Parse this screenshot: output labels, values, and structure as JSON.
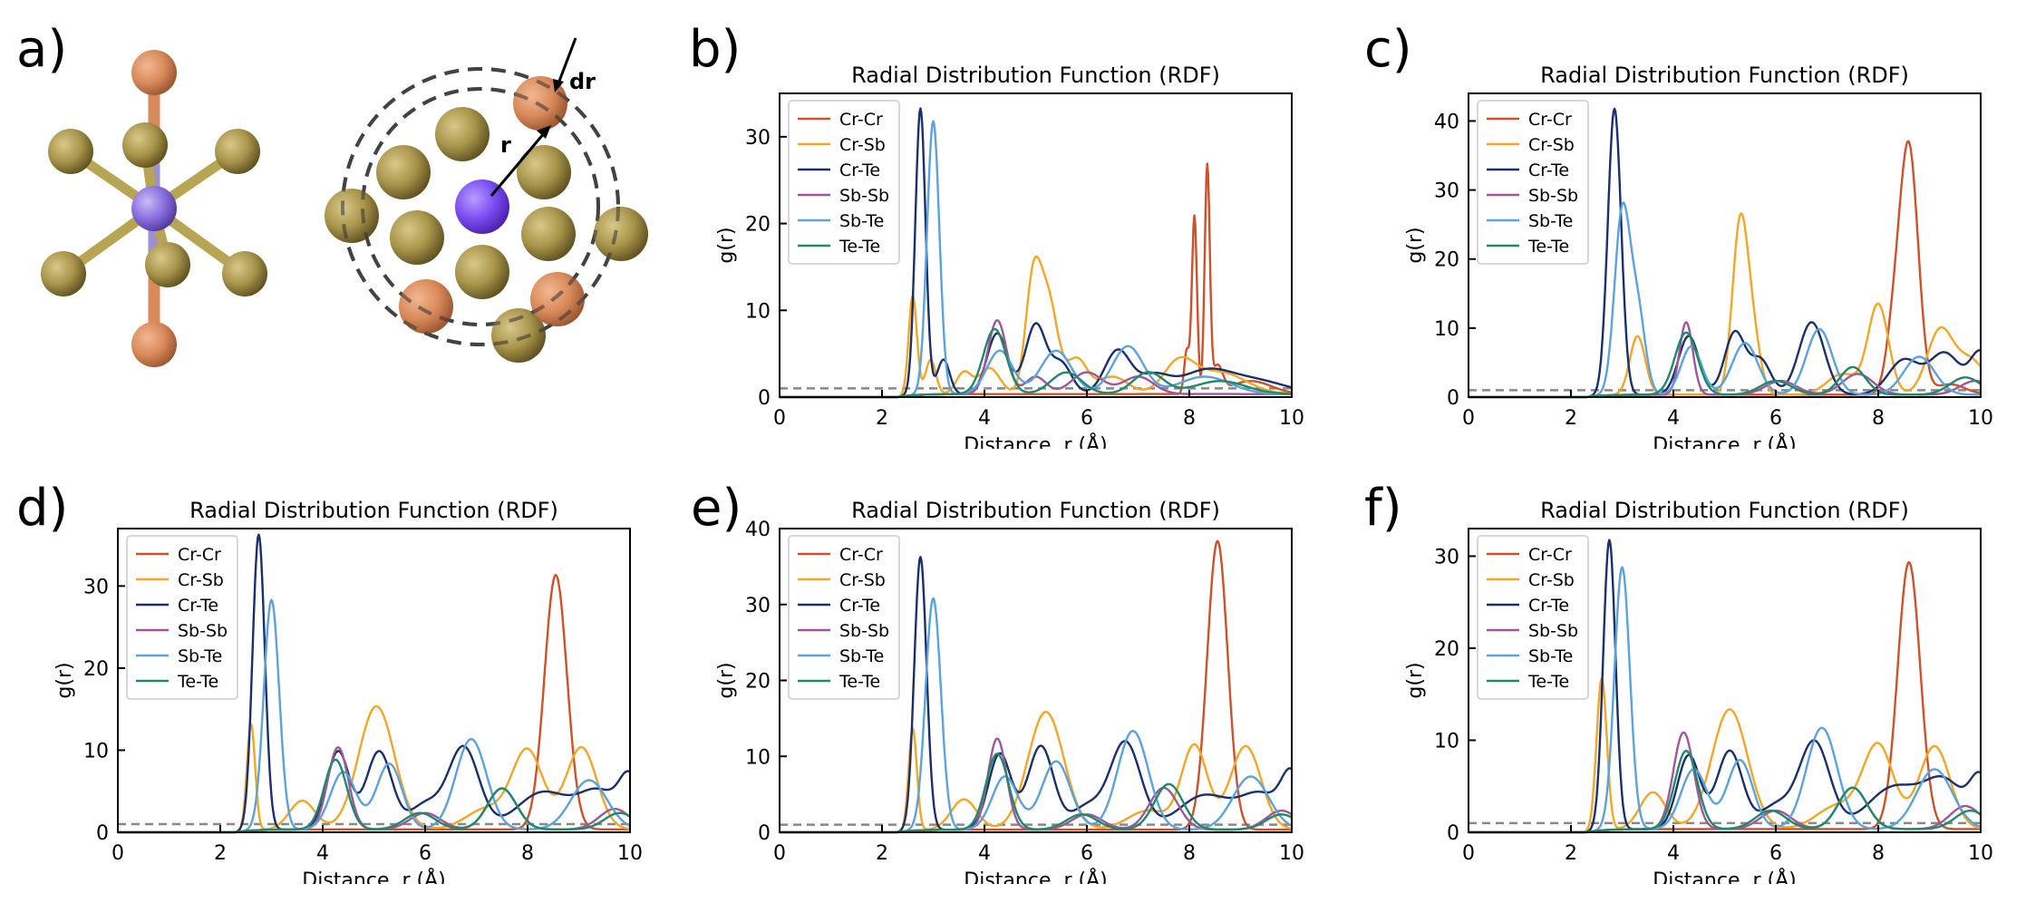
{
  "panel_letters": [
    "a)",
    "b)",
    "c)",
    "d)",
    "e)",
    "f)"
  ],
  "schematic": {
    "label_r": "r",
    "label_dr": "dr",
    "colors": {
      "center": "#8a6ee0",
      "center_bright": "#7b4cf0",
      "gold": "#a8944a",
      "copper": "#d98a5a",
      "bond_copper": "#d98a5a",
      "bond_purple": "#9d8fd0",
      "bond_gold": "#b7a553",
      "shell": "#555555"
    }
  },
  "series_colors": {
    "Cr-Cr": "#d0502a",
    "Cr-Sb": "#f5a623",
    "Cr-Te": "#1a2f6e",
    "Sb-Sb": "#a0569b",
    "Sb-Te": "#5aa2e0",
    "Te-Te": "#1f8a6a"
  },
  "chart_data": [
    {
      "id": "b",
      "type": "line",
      "title": "Radial Distribution Function (RDF)",
      "xlabel": "Distance, r (Å)",
      "ylabel": "g(r)",
      "xlim": [
        0,
        10
      ],
      "ylim": [
        0,
        35
      ],
      "xticks": [
        0,
        2,
        4,
        6,
        8,
        10
      ],
      "yticks": [
        0,
        10,
        20,
        30
      ],
      "legend": "top-left",
      "reference_line": 1,
      "series": [
        {
          "name": "Cr-Cr",
          "peaks": [
            [
              8.1,
              20.5,
              0.05
            ],
            [
              8.35,
              26.0,
              0.05
            ],
            [
              7.95,
              5.0,
              0.05
            ],
            [
              8.55,
              3.0,
              0.1
            ],
            [
              9.2,
              1.5,
              0.4
            ]
          ]
        },
        {
          "name": "Cr-Sb",
          "peaks": [
            [
              2.6,
              11.5,
              0.08
            ],
            [
              2.95,
              4.0,
              0.1
            ],
            [
              3.6,
              2.5,
              0.15
            ],
            [
              4.1,
              3.0,
              0.2
            ],
            [
              4.95,
              12.5,
              0.15
            ],
            [
              5.25,
              10.5,
              0.18
            ],
            [
              5.8,
              4.0,
              0.2
            ],
            [
              6.5,
              2.0,
              0.3
            ],
            [
              7.8,
              3.5,
              0.3
            ],
            [
              8.6,
              2.5,
              0.5
            ]
          ]
        },
        {
          "name": "Cr-Te",
          "peaks": [
            [
              2.75,
              33.0,
              0.1
            ],
            [
              3.2,
              4.0,
              0.12
            ],
            [
              4.25,
              7.0,
              0.2
            ],
            [
              5.0,
              8.0,
              0.2
            ],
            [
              5.5,
              3.5,
              0.2
            ],
            [
              6.6,
              5.0,
              0.25
            ],
            [
              7.3,
              2.0,
              0.3
            ],
            [
              8.3,
              2.5,
              0.5
            ],
            [
              9.3,
              1.5,
              0.6
            ]
          ]
        },
        {
          "name": "Sb-Sb",
          "peaks": [
            [
              4.25,
              8.5,
              0.18
            ],
            [
              5.0,
              2.0,
              0.2
            ],
            [
              6.0,
              2.5,
              0.3
            ],
            [
              7.0,
              2.0,
              0.3
            ]
          ]
        },
        {
          "name": "Sb-Te",
          "peaks": [
            [
              3.0,
              31.5,
              0.12
            ],
            [
              4.3,
              5.0,
              0.25
            ],
            [
              5.4,
              5.0,
              0.3
            ],
            [
              6.8,
              5.5,
              0.3
            ],
            [
              8.3,
              2.0,
              0.5
            ]
          ]
        },
        {
          "name": "Te-Te",
          "peaks": [
            [
              4.2,
              7.5,
              0.22
            ],
            [
              5.6,
              2.5,
              0.3
            ],
            [
              7.2,
              2.5,
              0.3
            ],
            [
              8.6,
              1.5,
              0.5
            ]
          ]
        }
      ]
    },
    {
      "id": "c",
      "type": "line",
      "title": "Radial Distribution Function (RDF)",
      "xlabel": "Distance, r (Å)",
      "ylabel": "g(r)",
      "xlim": [
        0,
        10
      ],
      "ylim": [
        0,
        44
      ],
      "xticks": [
        0,
        2,
        4,
        6,
        8,
        10
      ],
      "yticks": [
        0,
        10,
        20,
        30,
        40
      ],
      "legend": "top-left",
      "reference_line": 1,
      "series": [
        {
          "name": "Cr-Cr",
          "peaks": [
            [
              8.6,
              35.5,
              0.18
            ],
            [
              8.3,
              8.0,
              0.15
            ],
            [
              9.4,
              1.5,
              0.3
            ]
          ]
        },
        {
          "name": "Cr-Sb",
          "peaks": [
            [
              3.3,
              8.5,
              0.15
            ],
            [
              5.3,
              24.0,
              0.15
            ],
            [
              5.55,
              8.0,
              0.15
            ],
            [
              7.3,
              3.0,
              0.3
            ],
            [
              8.0,
              13.0,
              0.2
            ],
            [
              9.2,
              9.0,
              0.25
            ],
            [
              9.8,
              5.0,
              0.3
            ]
          ]
        },
        {
          "name": "Cr-Te",
          "peaks": [
            [
              2.85,
              41.5,
              0.13
            ],
            [
              4.3,
              8.5,
              0.2
            ],
            [
              5.2,
              9.0,
              0.2
            ],
            [
              5.7,
              5.0,
              0.2
            ],
            [
              6.7,
              10.5,
              0.25
            ],
            [
              8.5,
              5.0,
              0.3
            ],
            [
              9.3,
              6.0,
              0.3
            ],
            [
              10.0,
              6.0,
              0.2
            ]
          ]
        },
        {
          "name": "Sb-Sb",
          "peaks": [
            [
              4.25,
              10.5,
              0.13
            ],
            [
              6.1,
              2.0,
              0.3
            ],
            [
              7.6,
              3.0,
              0.3
            ],
            [
              9.9,
              2.0,
              0.3
            ]
          ]
        },
        {
          "name": "Sb-Te",
          "peaks": [
            [
              3.0,
              26.0,
              0.15
            ],
            [
              3.3,
              12.0,
              0.15
            ],
            [
              4.35,
              7.0,
              0.2
            ],
            [
              5.4,
              7.5,
              0.25
            ],
            [
              6.85,
              9.5,
              0.25
            ],
            [
              8.8,
              5.5,
              0.3
            ]
          ]
        },
        {
          "name": "Te-Te",
          "peaks": [
            [
              4.25,
              9.0,
              0.22
            ],
            [
              6.0,
              2.0,
              0.3
            ],
            [
              7.5,
              4.0,
              0.25
            ],
            [
              9.7,
              2.5,
              0.3
            ]
          ]
        }
      ]
    },
    {
      "id": "d",
      "type": "line",
      "title": "Radial Distribution Function (RDF)",
      "xlabel": "Distance, r (Å)",
      "ylabel": "g(r)",
      "xlim": [
        0,
        10
      ],
      "ylim": [
        0,
        37
      ],
      "xticks": [
        0,
        2,
        4,
        6,
        8,
        10
      ],
      "yticks": [
        0,
        10,
        20,
        30
      ],
      "legend": "top-left",
      "reference_line": 1,
      "series": [
        {
          "name": "Cr-Cr",
          "peaks": [
            [
              8.55,
              31.0,
              0.22
            ]
          ]
        },
        {
          "name": "Cr-Sb",
          "peaks": [
            [
              2.6,
              13.0,
              0.08
            ],
            [
              3.6,
              3.5,
              0.25
            ],
            [
              5.05,
              15.0,
              0.35
            ],
            [
              7.2,
              2.5,
              0.4
            ],
            [
              8.0,
              9.5,
              0.3
            ],
            [
              9.05,
              10.0,
              0.3
            ]
          ]
        },
        {
          "name": "Cr-Te",
          "peaks": [
            [
              2.75,
              36.0,
              0.12
            ],
            [
              4.3,
              9.5,
              0.22
            ],
            [
              5.1,
              9.5,
              0.25
            ],
            [
              6.0,
              3.0,
              0.3
            ],
            [
              6.75,
              10.0,
              0.3
            ],
            [
              8.3,
              4.5,
              0.5
            ],
            [
              9.4,
              4.5,
              0.4
            ],
            [
              10.0,
              5.5,
              0.2
            ]
          ]
        },
        {
          "name": "Sb-Sb",
          "peaks": [
            [
              4.3,
              10.0,
              0.2
            ],
            [
              6.0,
              2.0,
              0.3
            ],
            [
              7.5,
              5.0,
              0.28
            ],
            [
              9.7,
              2.5,
              0.3
            ]
          ]
        },
        {
          "name": "Sb-Te",
          "peaks": [
            [
              3.0,
              28.0,
              0.15
            ],
            [
              4.4,
              7.0,
              0.25
            ],
            [
              5.3,
              8.0,
              0.25
            ],
            [
              6.9,
              11.0,
              0.3
            ],
            [
              9.2,
              6.0,
              0.35
            ]
          ]
        },
        {
          "name": "Te-Te",
          "peaks": [
            [
              4.25,
              8.5,
              0.22
            ],
            [
              5.9,
              2.0,
              0.3
            ],
            [
              7.5,
              5.0,
              0.28
            ],
            [
              9.8,
              2.0,
              0.3
            ]
          ]
        }
      ]
    },
    {
      "id": "e",
      "type": "line",
      "title": "Radial Distribution Function (RDF)",
      "xlabel": "Distance, r (Å)",
      "ylabel": "g(r)",
      "xlim": [
        0,
        10
      ],
      "ylim": [
        0,
        40
      ],
      "xticks": [
        0,
        2,
        4,
        6,
        8,
        10
      ],
      "yticks": [
        0,
        10,
        20,
        30,
        40
      ],
      "legend": "top-left",
      "reference_line": 1,
      "series": [
        {
          "name": "Cr-Cr",
          "peaks": [
            [
              8.55,
              38.0,
              0.2
            ]
          ]
        },
        {
          "name": "Cr-Sb",
          "peaks": [
            [
              2.6,
              13.5,
              0.08
            ],
            [
              3.6,
              4.0,
              0.25
            ],
            [
              5.2,
              15.5,
              0.35
            ],
            [
              7.2,
              2.5,
              0.4
            ],
            [
              8.1,
              11.0,
              0.25
            ],
            [
              9.1,
              11.0,
              0.3
            ]
          ]
        },
        {
          "name": "Cr-Te",
          "peaks": [
            [
              2.75,
              36.0,
              0.12
            ],
            [
              4.3,
              10.0,
              0.22
            ],
            [
              5.1,
              11.0,
              0.25
            ],
            [
              6.0,
              3.0,
              0.3
            ],
            [
              6.75,
              11.5,
              0.3
            ],
            [
              8.3,
              4.5,
              0.5
            ],
            [
              9.4,
              4.5,
              0.4
            ],
            [
              10.0,
              6.5,
              0.2
            ]
          ]
        },
        {
          "name": "Sb-Sb",
          "peaks": [
            [
              4.25,
              12.0,
              0.18
            ],
            [
              6.0,
              2.0,
              0.3
            ],
            [
              7.5,
              5.5,
              0.28
            ],
            [
              9.8,
              2.5,
              0.3
            ]
          ]
        },
        {
          "name": "Sb-Te",
          "peaks": [
            [
              3.0,
              30.5,
              0.15
            ],
            [
              4.4,
              7.0,
              0.25
            ],
            [
              5.4,
              9.0,
              0.28
            ],
            [
              6.9,
              13.0,
              0.3
            ],
            [
              9.2,
              7.0,
              0.35
            ]
          ]
        },
        {
          "name": "Te-Te",
          "peaks": [
            [
              4.25,
              10.0,
              0.22
            ],
            [
              5.9,
              2.0,
              0.3
            ],
            [
              7.6,
              6.0,
              0.28
            ],
            [
              9.8,
              2.0,
              0.3
            ]
          ]
        }
      ]
    },
    {
      "id": "f",
      "type": "line",
      "title": "Radial Distribution Function (RDF)",
      "xlabel": "Distance, r (Å)",
      "ylabel": "g(r)",
      "xlim": [
        0,
        10
      ],
      "ylim": [
        0,
        33
      ],
      "xticks": [
        0,
        2,
        4,
        6,
        8,
        10
      ],
      "yticks": [
        0,
        10,
        20,
        30
      ],
      "legend": "top-left",
      "reference_line": 1,
      "series": [
        {
          "name": "Cr-Cr",
          "peaks": [
            [
              8.6,
              29.0,
              0.22
            ]
          ]
        },
        {
          "name": "Cr-Sb",
          "peaks": [
            [
              2.6,
              16.5,
              0.1
            ],
            [
              3.6,
              4.0,
              0.25
            ],
            [
              5.1,
              13.0,
              0.35
            ],
            [
              7.2,
              2.5,
              0.4
            ],
            [
              8.0,
              9.0,
              0.3
            ],
            [
              9.1,
              9.0,
              0.3
            ]
          ]
        },
        {
          "name": "Cr-Te",
          "peaks": [
            [
              2.75,
              31.5,
              0.12
            ],
            [
              4.3,
              8.0,
              0.22
            ],
            [
              5.1,
              8.5,
              0.25
            ],
            [
              6.0,
              2.5,
              0.3
            ],
            [
              6.75,
              9.5,
              0.3
            ],
            [
              8.3,
              4.5,
              0.5
            ],
            [
              9.3,
              5.0,
              0.4
            ],
            [
              10.0,
              5.0,
              0.2
            ]
          ]
        },
        {
          "name": "Sb-Sb",
          "peaks": [
            [
              4.2,
              10.5,
              0.2
            ],
            [
              6.0,
              2.0,
              0.3
            ],
            [
              7.5,
              4.5,
              0.28
            ],
            [
              9.7,
              2.5,
              0.3
            ]
          ]
        },
        {
          "name": "Sb-Te",
          "peaks": [
            [
              3.0,
              28.5,
              0.15
            ],
            [
              4.4,
              6.5,
              0.25
            ],
            [
              5.3,
              7.5,
              0.25
            ],
            [
              6.9,
              11.0,
              0.3
            ],
            [
              9.1,
              6.5,
              0.35
            ]
          ]
        },
        {
          "name": "Te-Te",
          "peaks": [
            [
              4.25,
              8.5,
              0.22
            ],
            [
              5.9,
              2.0,
              0.3
            ],
            [
              7.5,
              4.5,
              0.28
            ],
            [
              9.8,
              2.0,
              0.3
            ]
          ]
        }
      ]
    }
  ]
}
